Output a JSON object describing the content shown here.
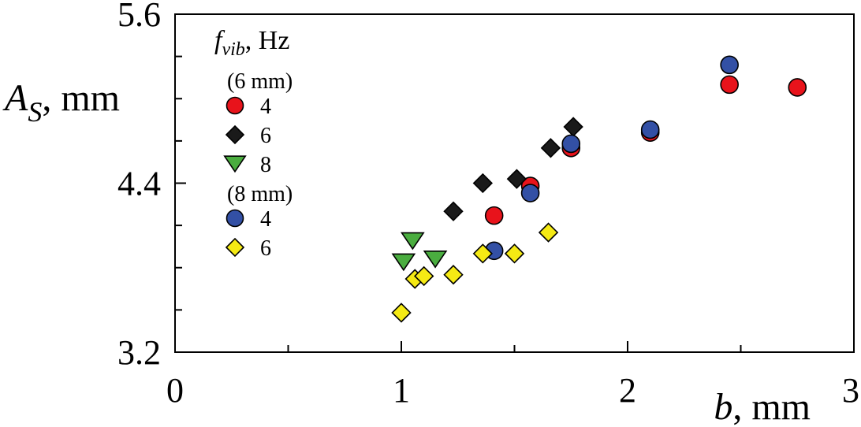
{
  "chart_data": {
    "type": "scatter",
    "title": "",
    "xlabel": {
      "var": "b",
      "unit": ", mm"
    },
    "ylabel": {
      "var": "A",
      "sub": "S",
      "unit": ", mm"
    },
    "xlim": [
      0,
      3
    ],
    "ylim": [
      3.2,
      5.6
    ],
    "x_ticks": [
      0,
      1,
      2,
      3
    ],
    "x_tick_labels": [
      "0",
      "1",
      "2",
      "3"
    ],
    "y_ticks": [
      3.2,
      4.4,
      5.6
    ],
    "y_tick_labels": [
      "3.2",
      "4.4",
      "5.6"
    ],
    "grid": false,
    "legend": {
      "placement": "top-left",
      "title": {
        "var": "f",
        "sub": "vib",
        "unit": ", Hz"
      },
      "groups": [
        {
          "label": "(6 mm)",
          "series": [
            0,
            1,
            2
          ]
        },
        {
          "label": "(8 mm)",
          "series": [
            3,
            4
          ]
        }
      ]
    },
    "series": [
      {
        "name": "4",
        "group": "(6 mm)",
        "marker": "circle",
        "color": "#e8131b",
        "x": [
          1.41,
          1.57,
          1.75,
          2.1,
          2.45,
          2.75
        ],
        "y": [
          4.17,
          4.38,
          4.65,
          4.76,
          5.1,
          5.08
        ]
      },
      {
        "name": "6",
        "group": "(6 mm)",
        "marker": "diamond",
        "color": "#1a1a1a",
        "x": [
          1.23,
          1.36,
          1.51,
          1.66,
          1.76
        ],
        "y": [
          4.2,
          4.4,
          4.43,
          4.65,
          4.8
        ]
      },
      {
        "name": "8",
        "group": "(6 mm)",
        "marker": "triangle-down",
        "color": "#4aad3f",
        "x": [
          1.01,
          1.05,
          1.15
        ],
        "y": [
          3.84,
          3.99,
          3.86
        ]
      },
      {
        "name": "4",
        "group": "(8 mm)",
        "marker": "circle",
        "color": "#3350a5",
        "x": [
          1.41,
          1.57,
          1.75,
          2.1,
          2.45
        ],
        "y": [
          3.92,
          4.33,
          4.68,
          4.78,
          5.24
        ]
      },
      {
        "name": "6",
        "group": "(8 mm)",
        "marker": "diamond",
        "color": "#f5ea14",
        "x": [
          1.0,
          1.06,
          1.1,
          1.23,
          1.36,
          1.5,
          1.65
        ],
        "y": [
          3.48,
          3.72,
          3.74,
          3.75,
          3.9,
          3.9,
          4.05
        ]
      }
    ]
  }
}
